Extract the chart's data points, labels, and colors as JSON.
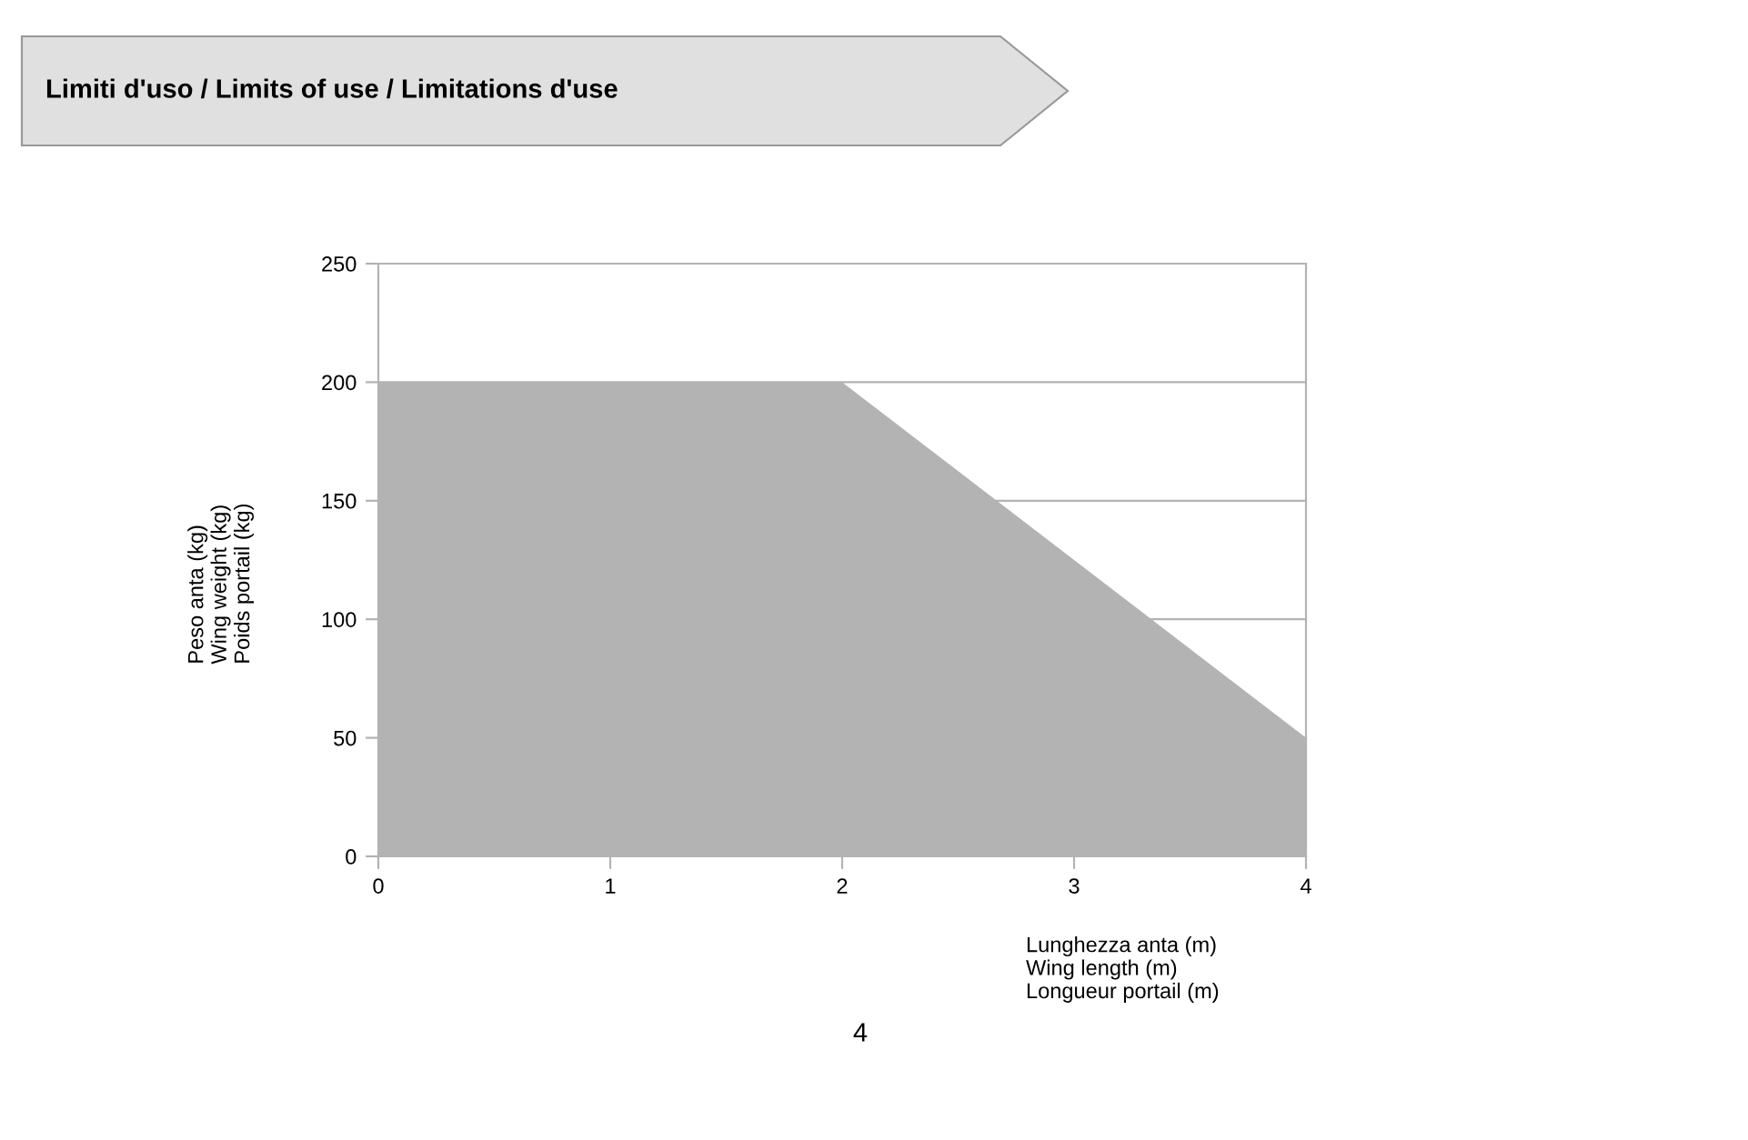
{
  "chart_data": {
    "type": "area",
    "title": "Limiti d'uso / Limits of use / Limitations d'use",
    "xlabel": "Lunghezza anta (m)\nWing length (m)\nLongueur portail (m)",
    "ylabel": "Peso anta (kg)\nWing weight (kg)\nPoids portail (kg)",
    "x": [
      0,
      2,
      4
    ],
    "series": [
      {
        "color": "#b3b3b3",
        "values": [
          200,
          200,
          50
        ]
      }
    ],
    "xlim": [
      0,
      4
    ],
    "xticks": [
      0,
      1,
      2,
      3,
      4
    ],
    "ylim": [
      0,
      250
    ],
    "yticks": [
      0,
      50,
      100,
      150,
      200,
      250
    ],
    "grid": "y",
    "legend": false,
    "annotations": [
      "4"
    ]
  }
}
